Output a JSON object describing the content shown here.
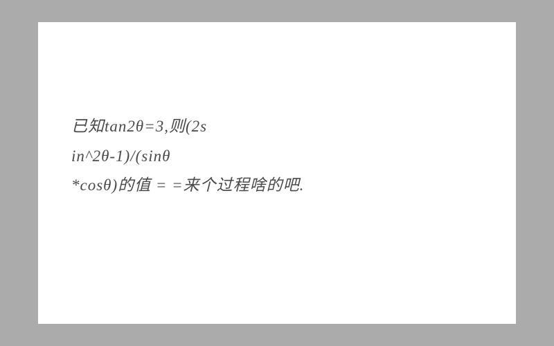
{
  "document": {
    "background_color": "#ababab",
    "paper_color": "#ffffff",
    "text_color": "#4a4a4a",
    "font_size": 23,
    "line_height": 1.85,
    "line1": "已知tan2θ=3,则(2s",
    "line2": "in^2θ-1)/(sinθ",
    "line3": "*cosθ)的值 = =来个过程啥的吧."
  }
}
